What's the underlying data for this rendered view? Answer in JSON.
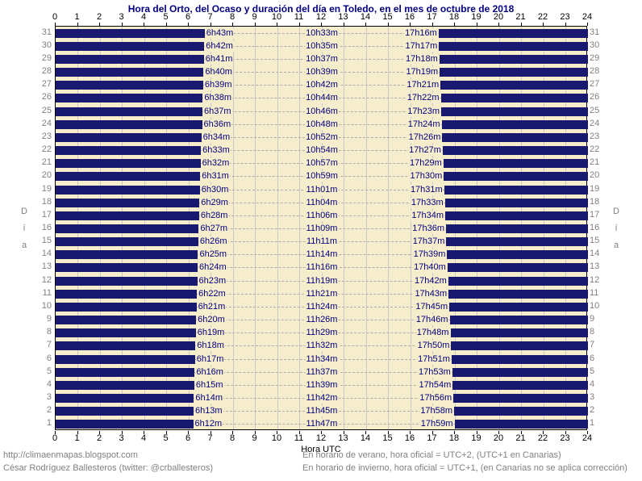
{
  "title": "Hora del Orto, del Ocaso y duración del día en Toledo, en el mes de octubre de 2018",
  "axis": {
    "hours": [
      0,
      1,
      2,
      3,
      4,
      5,
      6,
      7,
      8,
      9,
      10,
      11,
      12,
      13,
      14,
      15,
      16,
      17,
      18,
      19,
      20,
      21,
      22,
      23,
      24
    ],
    "xlabel": "Hora UTC",
    "ylabel": "Día"
  },
  "chart_data": {
    "type": "bar",
    "subtype": "horizontal-day-night-gantt",
    "title": "Hora del Orto, del Ocaso y duración del día en Toledo, en el mes de octubre de 2018",
    "xlabel": "Hora UTC",
    "ylabel": "Día",
    "xlim": [
      0,
      24
    ],
    "ylim": [
      1,
      31
    ],
    "grid": true,
    "note": "Navy bars cover night (00:00→sunrise and sunset→24:00); cream gap is daylight. Rows top-to-bottom are days 31→1.",
    "rows": [
      {
        "day": 31,
        "sunrise": "6h43m",
        "duration": "10h33m",
        "sunset": "17h16m"
      },
      {
        "day": 30,
        "sunrise": "6h42m",
        "duration": "10h35m",
        "sunset": "17h17m"
      },
      {
        "day": 29,
        "sunrise": "6h41m",
        "duration": "10h37m",
        "sunset": "17h18m"
      },
      {
        "day": 28,
        "sunrise": "6h40m",
        "duration": "10h39m",
        "sunset": "17h19m"
      },
      {
        "day": 27,
        "sunrise": "6h39m",
        "duration": "10h42m",
        "sunset": "17h21m"
      },
      {
        "day": 26,
        "sunrise": "6h38m",
        "duration": "10h44m",
        "sunset": "17h22m"
      },
      {
        "day": 25,
        "sunrise": "6h37m",
        "duration": "10h46m",
        "sunset": "17h23m"
      },
      {
        "day": 24,
        "sunrise": "6h36m",
        "duration": "10h48m",
        "sunset": "17h24m"
      },
      {
        "day": 23,
        "sunrise": "6h34m",
        "duration": "10h52m",
        "sunset": "17h26m"
      },
      {
        "day": 22,
        "sunrise": "6h33m",
        "duration": "10h54m",
        "sunset": "17h27m"
      },
      {
        "day": 21,
        "sunrise": "6h32m",
        "duration": "10h57m",
        "sunset": "17h29m"
      },
      {
        "day": 20,
        "sunrise": "6h31m",
        "duration": "10h59m",
        "sunset": "17h30m"
      },
      {
        "day": 19,
        "sunrise": "6h30m",
        "duration": "11h01m",
        "sunset": "17h31m"
      },
      {
        "day": 18,
        "sunrise": "6h29m",
        "duration": "11h04m",
        "sunset": "17h33m"
      },
      {
        "day": 17,
        "sunrise": "6h28m",
        "duration": "11h06m",
        "sunset": "17h34m"
      },
      {
        "day": 16,
        "sunrise": "6h27m",
        "duration": "11h09m",
        "sunset": "17h36m"
      },
      {
        "day": 15,
        "sunrise": "6h26m",
        "duration": "11h11m",
        "sunset": "17h37m"
      },
      {
        "day": 14,
        "sunrise": "6h25m",
        "duration": "11h14m",
        "sunset": "17h39m"
      },
      {
        "day": 13,
        "sunrise": "6h24m",
        "duration": "11h16m",
        "sunset": "17h40m"
      },
      {
        "day": 12,
        "sunrise": "6h23m",
        "duration": "11h19m",
        "sunset": "17h42m"
      },
      {
        "day": 11,
        "sunrise": "6h22m",
        "duration": "11h21m",
        "sunset": "17h43m"
      },
      {
        "day": 10,
        "sunrise": "6h21m",
        "duration": "11h24m",
        "sunset": "17h45m"
      },
      {
        "day": 9,
        "sunrise": "6h20m",
        "duration": "11h26m",
        "sunset": "17h46m"
      },
      {
        "day": 8,
        "sunrise": "6h19m",
        "duration": "11h29m",
        "sunset": "17h48m"
      },
      {
        "day": 7,
        "sunrise": "6h18m",
        "duration": "11h32m",
        "sunset": "17h50m"
      },
      {
        "day": 6,
        "sunrise": "6h17m",
        "duration": "11h34m",
        "sunset": "17h51m"
      },
      {
        "day": 5,
        "sunrise": "6h16m",
        "duration": "11h37m",
        "sunset": "17h53m"
      },
      {
        "day": 4,
        "sunrise": "6h15m",
        "duration": "11h39m",
        "sunset": "17h54m"
      },
      {
        "day": 3,
        "sunrise": "6h14m",
        "duration": "11h42m",
        "sunset": "17h56m"
      },
      {
        "day": 2,
        "sunrise": "6h13m",
        "duration": "11h45m",
        "sunset": "17h58m"
      },
      {
        "day": 1,
        "sunrise": "6h12m",
        "duration": "11h47m",
        "sunset": "17h59m"
      }
    ]
  },
  "footer": {
    "left": [
      "http://climaenmapas.blogspot.com",
      "César Rodríguez Ballesteros (twitter: @crballesteros)"
    ],
    "right": [
      "En horario de verano, hora oficial = UTC+2, (UTC+1 en Canarias)",
      "En horario de invierno, hora oficial = UTC+1, (en Canarias no se aplica corrección)"
    ]
  },
  "colors": {
    "bar": "#191970",
    "plot_bg": "#F5EDCB",
    "grid": "#C9C9C9",
    "dash": "#ACACAC",
    "title_text": "#000080",
    "bar_label": "#000080",
    "day_label": "#808080",
    "hour_label": "#000000",
    "footer_text": "#808080"
  }
}
